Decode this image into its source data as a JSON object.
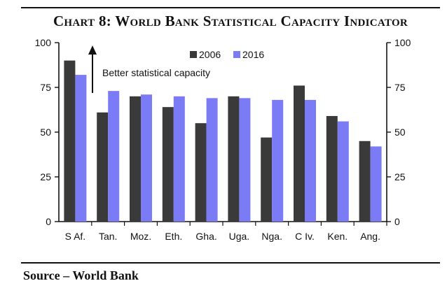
{
  "title": "Chart 8: World Bank Statistical Capacity Indicator",
  "source": "Source – World Bank",
  "colors": {
    "s2006": "#3a3a3a",
    "s2016": "#7b7bf5",
    "axis": "#111111"
  },
  "chart_data": {
    "type": "bar",
    "title": "Chart 8: World Bank Statistical Capacity Indicator",
    "categories": [
      "S Af.",
      "Tan.",
      "Moz.",
      "Eth.",
      "Gha.",
      "Uga.",
      "Nga.",
      "C Iv.",
      "Ken.",
      "Ang."
    ],
    "series": [
      {
        "name": "2006",
        "values": [
          90,
          61,
          70,
          64,
          55,
          70,
          47,
          76,
          59,
          45
        ]
      },
      {
        "name": "2016",
        "values": [
          82,
          73,
          71,
          70,
          69,
          69,
          68,
          68,
          56,
          42
        ]
      }
    ],
    "ylim": [
      0,
      100
    ],
    "yticks": [
      0,
      25,
      50,
      75,
      100
    ],
    "ytick_labels": [
      "0",
      "25",
      "50",
      "75",
      "100"
    ],
    "right_axis_ticks": [
      0,
      25,
      50,
      75,
      100
    ],
    "right_axis_tick_labels": [
      "0",
      "25",
      "50",
      "75",
      "100"
    ],
    "xlabel": "",
    "ylabel": "",
    "legend": [
      "2006",
      "2016"
    ],
    "annotation": "Better statistical capacity"
  }
}
